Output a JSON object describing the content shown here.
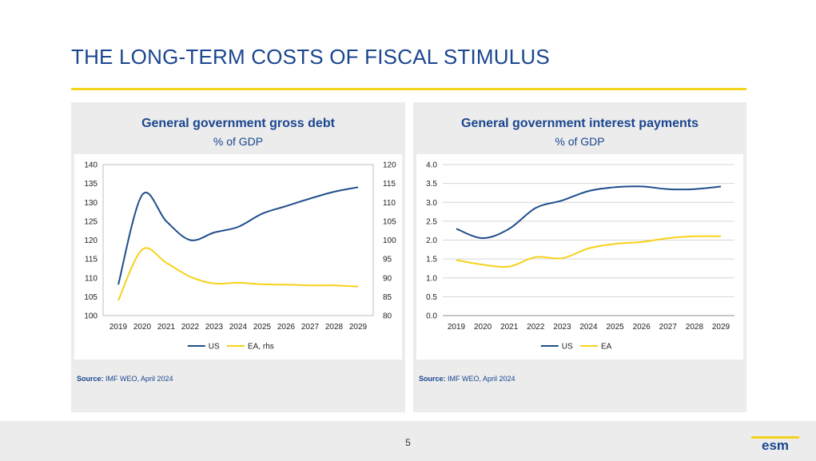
{
  "page": {
    "title": "THE LONG-TERM COSTS OF FISCAL STIMULUS",
    "page_number": "5",
    "logo_text": "esm"
  },
  "colors": {
    "us": "#1f4e8c",
    "ea": "#f5d21c",
    "brand": "#1a4690"
  },
  "panels": [
    {
      "title": "General government gross debt",
      "subtitle": "% of GDP",
      "source_label": "Source:",
      "source_text": "IMF WEO, April 2024"
    },
    {
      "title": "General government interest payments",
      "subtitle": "% of GDP",
      "source_label": "Source:",
      "source_text": "IMF WEO, April 2024"
    }
  ],
  "chart_data": [
    {
      "type": "line",
      "title": "General government gross debt",
      "subtitle": "% of GDP",
      "x": [
        "2019",
        "2020",
        "2021",
        "2022",
        "2023",
        "2024",
        "2025",
        "2026",
        "2027",
        "2028",
        "2029"
      ],
      "y_left_ticks": [
        "100",
        "105",
        "110",
        "115",
        "120",
        "125",
        "130",
        "135",
        "140"
      ],
      "y_right_ticks": [
        "80",
        "85",
        "90",
        "95",
        "100",
        "105",
        "110",
        "115",
        "120"
      ],
      "ylim_left": [
        100,
        140
      ],
      "ylim_right": [
        80,
        120
      ],
      "grid": false,
      "legend_position": "bottom",
      "series": [
        {
          "name": "US",
          "axis": "left",
          "values": [
            108.2,
            132.0,
            125.0,
            120.0,
            122.0,
            123.5,
            127.0,
            129.0,
            131.0,
            132.8,
            134.0
          ]
        },
        {
          "name": "EA, rhs",
          "axis": "right",
          "values": [
            84.0,
            97.5,
            94.0,
            90.3,
            88.5,
            88.7,
            88.3,
            88.2,
            88.0,
            88.0,
            87.7
          ]
        }
      ]
    },
    {
      "type": "line",
      "title": "General government interest payments",
      "subtitle": "% of GDP",
      "x": [
        "2019",
        "2020",
        "2021",
        "2022",
        "2023",
        "2024",
        "2025",
        "2026",
        "2027",
        "2028",
        "2029"
      ],
      "y_ticks": [
        "0.0",
        "0.5",
        "1.0",
        "1.5",
        "2.0",
        "2.5",
        "3.0",
        "3.5",
        "4.0"
      ],
      "ylim": [
        0,
        4
      ],
      "grid": true,
      "legend_position": "bottom",
      "series": [
        {
          "name": "US",
          "values": [
            2.3,
            2.05,
            2.3,
            2.85,
            3.05,
            3.3,
            3.4,
            3.42,
            3.35,
            3.35,
            3.42
          ]
        },
        {
          "name": "EA",
          "values": [
            1.47,
            1.35,
            1.3,
            1.55,
            1.52,
            1.78,
            1.9,
            1.95,
            2.05,
            2.1,
            2.1
          ]
        }
      ]
    }
  ]
}
